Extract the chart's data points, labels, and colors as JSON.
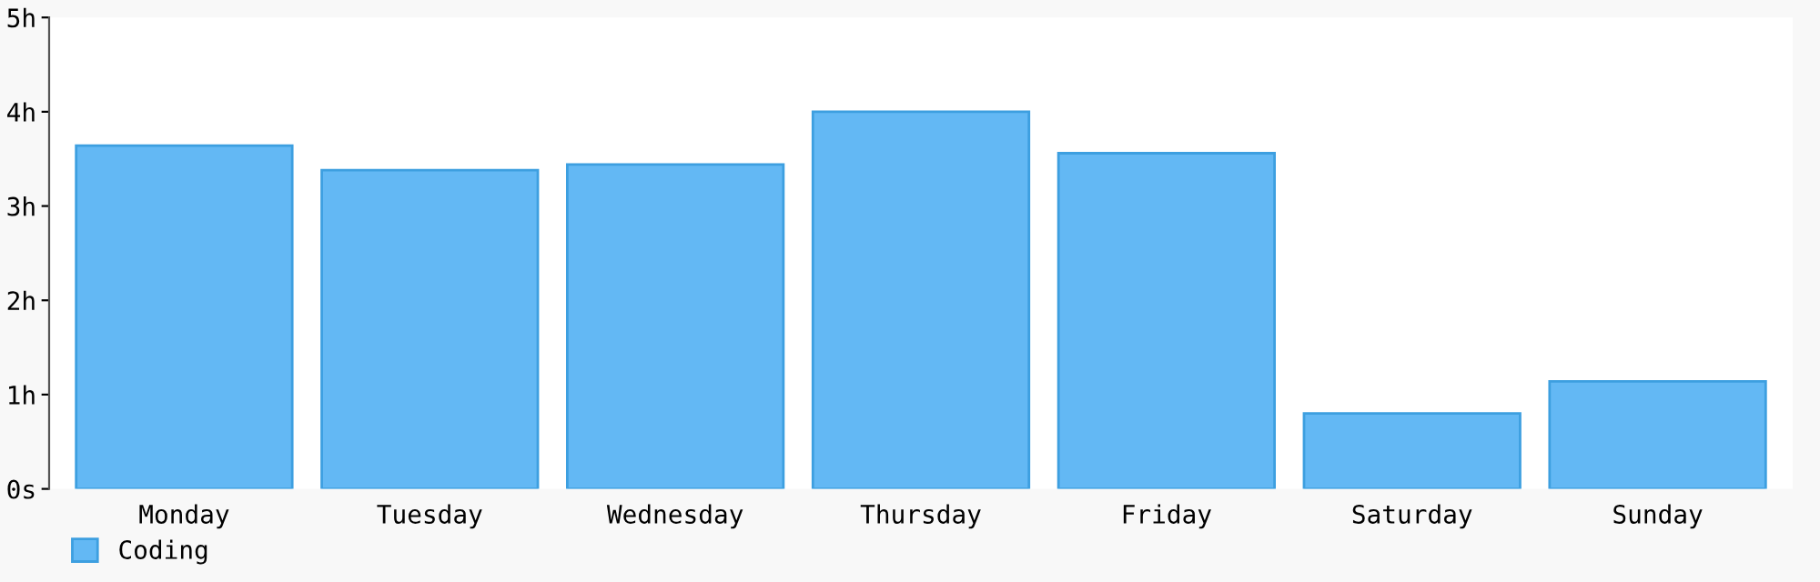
{
  "chart_data": {
    "type": "bar",
    "categories": [
      "Monday",
      "Tuesday",
      "Wednesday",
      "Thursday",
      "Friday",
      "Saturday",
      "Sunday"
    ],
    "series": [
      {
        "name": "Coding",
        "color": "#63b8f4",
        "values": [
          3.64,
          3.38,
          3.44,
          4.0,
          3.56,
          0.8,
          1.14
        ]
      }
    ],
    "ylim": [
      0,
      5
    ],
    "yticks": [
      {
        "value": 0,
        "label": "0s"
      },
      {
        "value": 1,
        "label": "1h"
      },
      {
        "value": 2,
        "label": "2h"
      },
      {
        "value": 3,
        "label": "3h"
      },
      {
        "value": 4,
        "label": "4h"
      },
      {
        "value": 5,
        "label": "5h"
      }
    ],
    "legend": "bottom left",
    "grid": false
  }
}
